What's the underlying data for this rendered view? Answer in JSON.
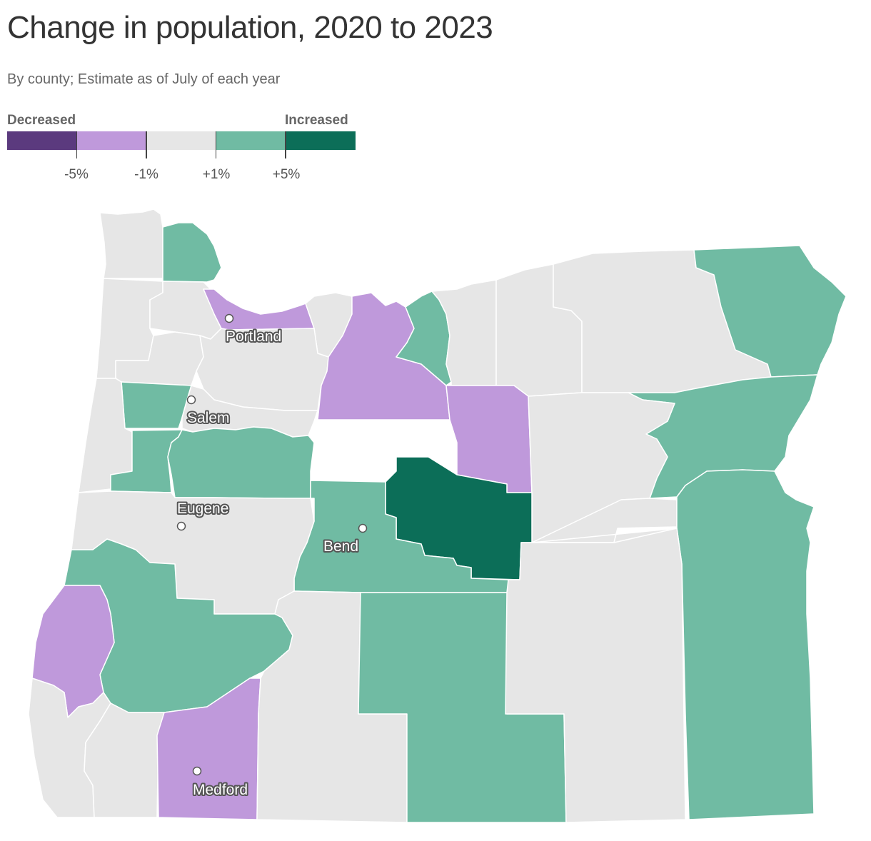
{
  "title": "Change in population, 2020 to 2023",
  "subtitle": "By county; Estimate as of July of each year",
  "legend": {
    "left_label": "Decreased",
    "right_label": "Increased",
    "colors": [
      "#5b3a7e",
      "#bf99db",
      "#e6e6e6",
      "#70bba3",
      "#0c6e58"
    ],
    "ticks": [
      "-5%",
      "-1%",
      "+1%",
      "+5%"
    ]
  },
  "colors": {
    "neutral": "#e6e6e6",
    "decrease_small": "#bf99db",
    "decrease_large": "#5b3a7e",
    "increase_small": "#70bba3",
    "increase_large": "#0c6e58",
    "border": "#ffffff"
  },
  "cities": [
    {
      "name": "Portland"
    },
    {
      "name": "Salem"
    },
    {
      "name": "Eugene"
    },
    {
      "name": "Bend"
    },
    {
      "name": "Medford"
    }
  ]
}
